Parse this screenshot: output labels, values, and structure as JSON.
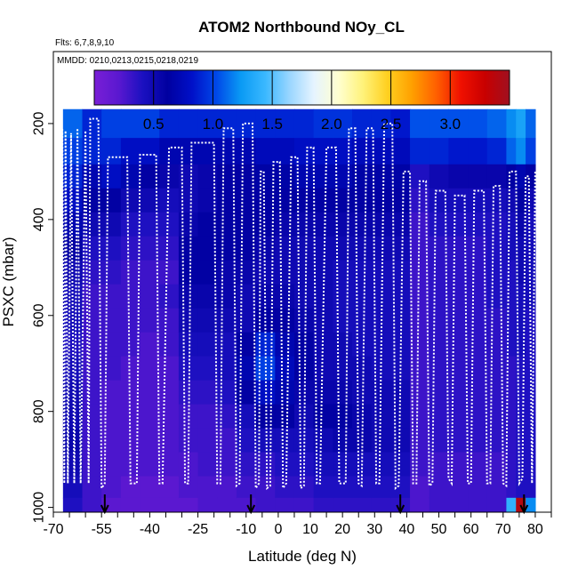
{
  "chart_data": {
    "type": "heatmap",
    "title": "ATOM2 Northbound NOy_CL",
    "subtitle_flights": "Flts: 6,7,8,9,10",
    "subtitle_dates": "MMDD: 0210,0213,0215,0218,0219",
    "xlabel": "Latitude (deg N)",
    "ylabel": "PSXC (mbar)",
    "xlim": [
      -70,
      85
    ],
    "ylim": [
      1010,
      50
    ],
    "y_reversed": true,
    "x_ticks": [
      -70,
      -55,
      -40,
      -25,
      -10,
      0,
      10,
      20,
      30,
      40,
      50,
      60,
      70,
      80
    ],
    "x_tick_labels": [
      "-70",
      "-55",
      "-40",
      "-25",
      "-10",
      "0",
      "10",
      "20",
      "30",
      "40",
      "50",
      "60",
      "70",
      "80"
    ],
    "y_ticks": [
      200,
      400,
      600,
      800,
      1000
    ],
    "y_tick_labels": [
      "200",
      "400",
      "600",
      "800",
      "1000"
    ],
    "colorbar": {
      "ticks": [
        0.5,
        1.0,
        1.5,
        2.0,
        2.5,
        3.0
      ],
      "tick_labels": [
        "0.5",
        "1.0",
        "1.5",
        "2.0",
        "2.5",
        "3.0"
      ],
      "range": [
        0.0,
        3.5
      ],
      "colors": [
        "#7a1fd6",
        "#5a18d0",
        "#1a10c0",
        "#0000a0",
        "#0010c8",
        "#0048e8",
        "#0a9af4",
        "#3ab8ff",
        "#9ad6ff",
        "#e6f4ff",
        "#ffffd0",
        "#fff27a",
        "#ffd020",
        "#ffa000",
        "#ff6000",
        "#f01000",
        "#c80000",
        "#a01020"
      ]
    },
    "flight_arrows_lat": [
      -54,
      -8.5,
      38,
      76.5
    ],
    "heatmap": {
      "description": "Latitude bins (deg N) by pressure levels (mbar), NOy_CL values in ppb",
      "lat_edges": [
        -67,
        -61,
        -55,
        -49,
        -43,
        -37,
        -31,
        -25,
        -19,
        -13,
        -7,
        -1,
        5,
        11,
        17,
        23,
        29,
        35,
        41,
        47,
        53,
        59,
        65,
        71,
        74,
        77,
        80
      ],
      "p_levels": [
        200,
        260,
        310,
        360,
        410,
        460,
        510,
        560,
        610,
        660,
        710,
        760,
        810,
        860,
        910,
        960,
        1000
      ],
      "values": [
        [
          1.1,
          1.0,
          0.9,
          0.8,
          0.7,
          0.6,
          0.5,
          0.45,
          0.45,
          0.4,
          0.45,
          0.5,
          0.5,
          0.55,
          0.5,
          0.45,
          0.4
        ],
        [
          0.9,
          0.9,
          0.7,
          0.6,
          0.5,
          0.4,
          0.35,
          0.3,
          0.3,
          0.3,
          0.3,
          0.3,
          0.3,
          0.3,
          0.3,
          0.3,
          0.3
        ],
        [
          1.0,
          0.9,
          0.8,
          0.6,
          0.5,
          0.4,
          0.35,
          0.3,
          0.3,
          0.3,
          0.3,
          0.25,
          0.25,
          0.25,
          0.25,
          0.25,
          0.2
        ],
        [
          1.0,
          0.8,
          0.7,
          0.5,
          0.4,
          0.35,
          0.3,
          0.3,
          0.3,
          0.3,
          0.25,
          0.25,
          0.25,
          0.25,
          0.25,
          0.2,
          0.2
        ],
        [
          1.0,
          0.8,
          0.6,
          0.5,
          0.4,
          0.35,
          0.3,
          0.3,
          0.3,
          0.25,
          0.25,
          0.25,
          0.25,
          0.25,
          0.25,
          0.2,
          0.2
        ],
        [
          0.9,
          0.7,
          0.55,
          0.45,
          0.4,
          0.35,
          0.3,
          0.35,
          0.3,
          0.3,
          0.25,
          0.25,
          0.25,
          0.25,
          0.25,
          0.2,
          0.2
        ],
        [
          0.9,
          0.7,
          0.5,
          0.5,
          0.55,
          0.6,
          0.6,
          0.55,
          0.5,
          0.45,
          0.4,
          0.35,
          0.3,
          0.3,
          0.25,
          0.25,
          0.2
        ],
        [
          0.9,
          0.7,
          0.55,
          0.55,
          0.6,
          0.6,
          0.6,
          0.55,
          0.5,
          0.45,
          0.4,
          0.35,
          0.3,
          0.3,
          0.3,
          0.25,
          0.25
        ],
        [
          0.9,
          0.7,
          0.6,
          0.6,
          0.6,
          0.6,
          0.55,
          0.55,
          0.5,
          0.45,
          0.45,
          0.4,
          0.35,
          0.3,
          0.3,
          0.25,
          0.25
        ],
        [
          0.9,
          0.7,
          0.6,
          0.6,
          0.6,
          0.6,
          0.55,
          0.5,
          0.5,
          0.6,
          0.7,
          0.6,
          0.45,
          0.4,
          0.35,
          0.3,
          0.25
        ],
        [
          0.9,
          0.75,
          0.65,
          0.6,
          0.6,
          0.55,
          0.5,
          0.55,
          0.6,
          0.9,
          1.0,
          0.8,
          0.6,
          0.45,
          0.35,
          0.3,
          0.3
        ],
        [
          0.9,
          0.75,
          0.65,
          0.6,
          0.55,
          0.5,
          0.5,
          0.55,
          0.6,
          0.7,
          0.75,
          0.7,
          0.6,
          0.45,
          0.4,
          0.35,
          0.3
        ],
        [
          0.9,
          0.8,
          0.7,
          0.6,
          0.55,
          0.5,
          0.5,
          0.5,
          0.55,
          0.6,
          0.6,
          0.55,
          0.5,
          0.45,
          0.4,
          0.35,
          0.3
        ],
        [
          0.95,
          0.8,
          0.7,
          0.6,
          0.55,
          0.5,
          0.5,
          0.5,
          0.5,
          0.5,
          0.5,
          0.55,
          0.6,
          0.5,
          0.45,
          0.4,
          0.35
        ],
        [
          0.95,
          0.8,
          0.7,
          0.6,
          0.55,
          0.5,
          0.45,
          0.45,
          0.45,
          0.5,
          0.5,
          0.55,
          0.6,
          0.55,
          0.45,
          0.4,
          0.35
        ],
        [
          0.9,
          0.75,
          0.65,
          0.6,
          0.55,
          0.5,
          0.45,
          0.45,
          0.45,
          0.45,
          0.5,
          0.5,
          0.55,
          0.55,
          0.45,
          0.4,
          0.35
        ],
        [
          0.9,
          0.75,
          0.65,
          0.6,
          0.55,
          0.5,
          0.45,
          0.45,
          0.45,
          0.45,
          0.45,
          0.5,
          0.5,
          0.5,
          0.45,
          0.4,
          0.35
        ],
        [
          0.85,
          0.75,
          0.65,
          0.6,
          0.55,
          0.5,
          0.45,
          0.45,
          0.45,
          0.45,
          0.45,
          0.5,
          0.5,
          0.5,
          0.45,
          0.4,
          0.35
        ],
        [
          1.05,
          0.9,
          0.4,
          0.35,
          0.3,
          0.3,
          0.3,
          0.3,
          0.3,
          0.3,
          0.3,
          0.3,
          0.3,
          0.3,
          0.3,
          0.25,
          0.25
        ],
        [
          1.05,
          0.9,
          0.5,
          0.45,
          0.4,
          0.35,
          0.35,
          0.35,
          0.35,
          0.35,
          0.35,
          0.35,
          0.35,
          0.35,
          0.3,
          0.3,
          0.3
        ],
        [
          1.05,
          0.85,
          0.55,
          0.45,
          0.4,
          0.35,
          0.35,
          0.35,
          0.35,
          0.35,
          0.35,
          0.35,
          0.35,
          0.35,
          0.3,
          0.3,
          0.3
        ],
        [
          1.05,
          0.85,
          0.55,
          0.45,
          0.4,
          0.35,
          0.35,
          0.35,
          0.35,
          0.35,
          0.35,
          0.35,
          0.35,
          0.35,
          0.3,
          0.3,
          0.3
        ],
        [
          1.1,
          0.9,
          0.55,
          0.45,
          0.4,
          0.4,
          0.4,
          0.4,
          0.35,
          0.35,
          0.35,
          0.35,
          0.35,
          0.35,
          0.3,
          0.3,
          0.3
        ],
        [
          1.2,
          1.1,
          0.6,
          0.5,
          0.45,
          0.45,
          0.4,
          0.4,
          0.4,
          0.4,
          0.35,
          0.35,
          0.35,
          0.35,
          0.35,
          0.35,
          1.4
        ],
        [
          1.3,
          1.2,
          0.7,
          0.6,
          0.55,
          0.5,
          0.5,
          0.45,
          0.45,
          0.45,
          0.4,
          0.4,
          0.4,
          0.4,
          0.4,
          0.4,
          3.4
        ],
        [
          1.1,
          1.0,
          0.6,
          0.5,
          0.45,
          0.45,
          0.45,
          0.45,
          0.4,
          0.4,
          0.4,
          0.4,
          0.4,
          0.4,
          0.4,
          0.4,
          1.2
        ]
      ]
    },
    "flight_track": {
      "description": "Aircraft altitude profile (white dotted), latitude vs pressure",
      "points": [
        [
          -67.5,
          950
        ],
        [
          -67.2,
          210
        ],
        [
          -66.6,
          950
        ],
        [
          -66.2,
          215
        ],
        [
          -65.5,
          950
        ],
        [
          -64.5,
          220
        ],
        [
          -63.5,
          950
        ],
        [
          -62.5,
          210
        ],
        [
          -61.5,
          950
        ],
        [
          -60,
          215
        ],
        [
          -59,
          950
        ],
        [
          -58.5,
          190
        ],
        [
          -56,
          190
        ],
        [
          -55,
          960
        ],
        [
          -54,
          950
        ],
        [
          -53,
          270
        ],
        [
          -47,
          270
        ],
        [
          -46,
          950
        ],
        [
          -44,
          950
        ],
        [
          -43,
          265
        ],
        [
          -38,
          265
        ],
        [
          -37,
          950
        ],
        [
          -36,
          950
        ],
        [
          -34,
          250
        ],
        [
          -30,
          250
        ],
        [
          -29,
          950
        ],
        [
          -28,
          950
        ],
        [
          -27,
          240
        ],
        [
          -20,
          240
        ],
        [
          -19,
          950
        ],
        [
          -18,
          950
        ],
        [
          -17,
          210
        ],
        [
          -14,
          210
        ],
        [
          -13,
          955
        ],
        [
          -12,
          950
        ],
        [
          -11,
          200
        ],
        [
          -8,
          200
        ],
        [
          -7,
          960
        ],
        [
          -6,
          950
        ],
        [
          -5.5,
          300
        ],
        [
          -4.5,
          300
        ],
        [
          -3.5,
          960
        ],
        [
          -2.5,
          955
        ],
        [
          -1.5,
          280
        ],
        [
          0.5,
          280
        ],
        [
          1.5,
          960
        ],
        [
          2.5,
          950
        ],
        [
          4,
          270
        ],
        [
          6,
          270
        ],
        [
          7,
          960
        ],
        [
          8,
          955
        ],
        [
          9,
          250
        ],
        [
          11,
          250
        ],
        [
          12,
          950
        ],
        [
          13,
          950
        ],
        [
          15,
          250
        ],
        [
          18,
          250
        ],
        [
          19,
          950
        ],
        [
          21,
          950
        ],
        [
          22,
          210
        ],
        [
          24,
          210
        ],
        [
          25,
          950
        ],
        [
          26,
          955
        ],
        [
          27.5,
          210
        ],
        [
          29.5,
          210
        ],
        [
          30.5,
          950
        ],
        [
          31.5,
          950
        ],
        [
          33,
          200
        ],
        [
          35.5,
          200
        ],
        [
          36.5,
          960
        ],
        [
          37.5,
          955
        ],
        [
          39,
          300
        ],
        [
          41,
          300
        ],
        [
          42,
          950
        ],
        [
          43,
          950
        ],
        [
          44,
          320
        ],
        [
          46,
          320
        ],
        [
          47,
          955
        ],
        [
          48,
          950
        ],
        [
          49,
          340
        ],
        [
          52,
          340
        ],
        [
          53,
          940
        ],
        [
          54,
          950
        ],
        [
          55,
          350
        ],
        [
          58,
          350
        ],
        [
          59,
          950
        ],
        [
          60,
          950
        ],
        [
          61,
          340
        ],
        [
          64,
          340
        ],
        [
          65,
          950
        ],
        [
          66,
          950
        ],
        [
          67,
          330
        ],
        [
          69,
          330
        ],
        [
          70,
          950
        ],
        [
          71,
          955
        ],
        [
          72,
          300
        ],
        [
          74,
          300
        ],
        [
          75,
          950
        ],
        [
          76,
          940
        ],
        [
          77,
          310
        ],
        [
          78,
          310
        ],
        [
          79,
          950
        ],
        [
          80,
          300
        ]
      ]
    }
  }
}
